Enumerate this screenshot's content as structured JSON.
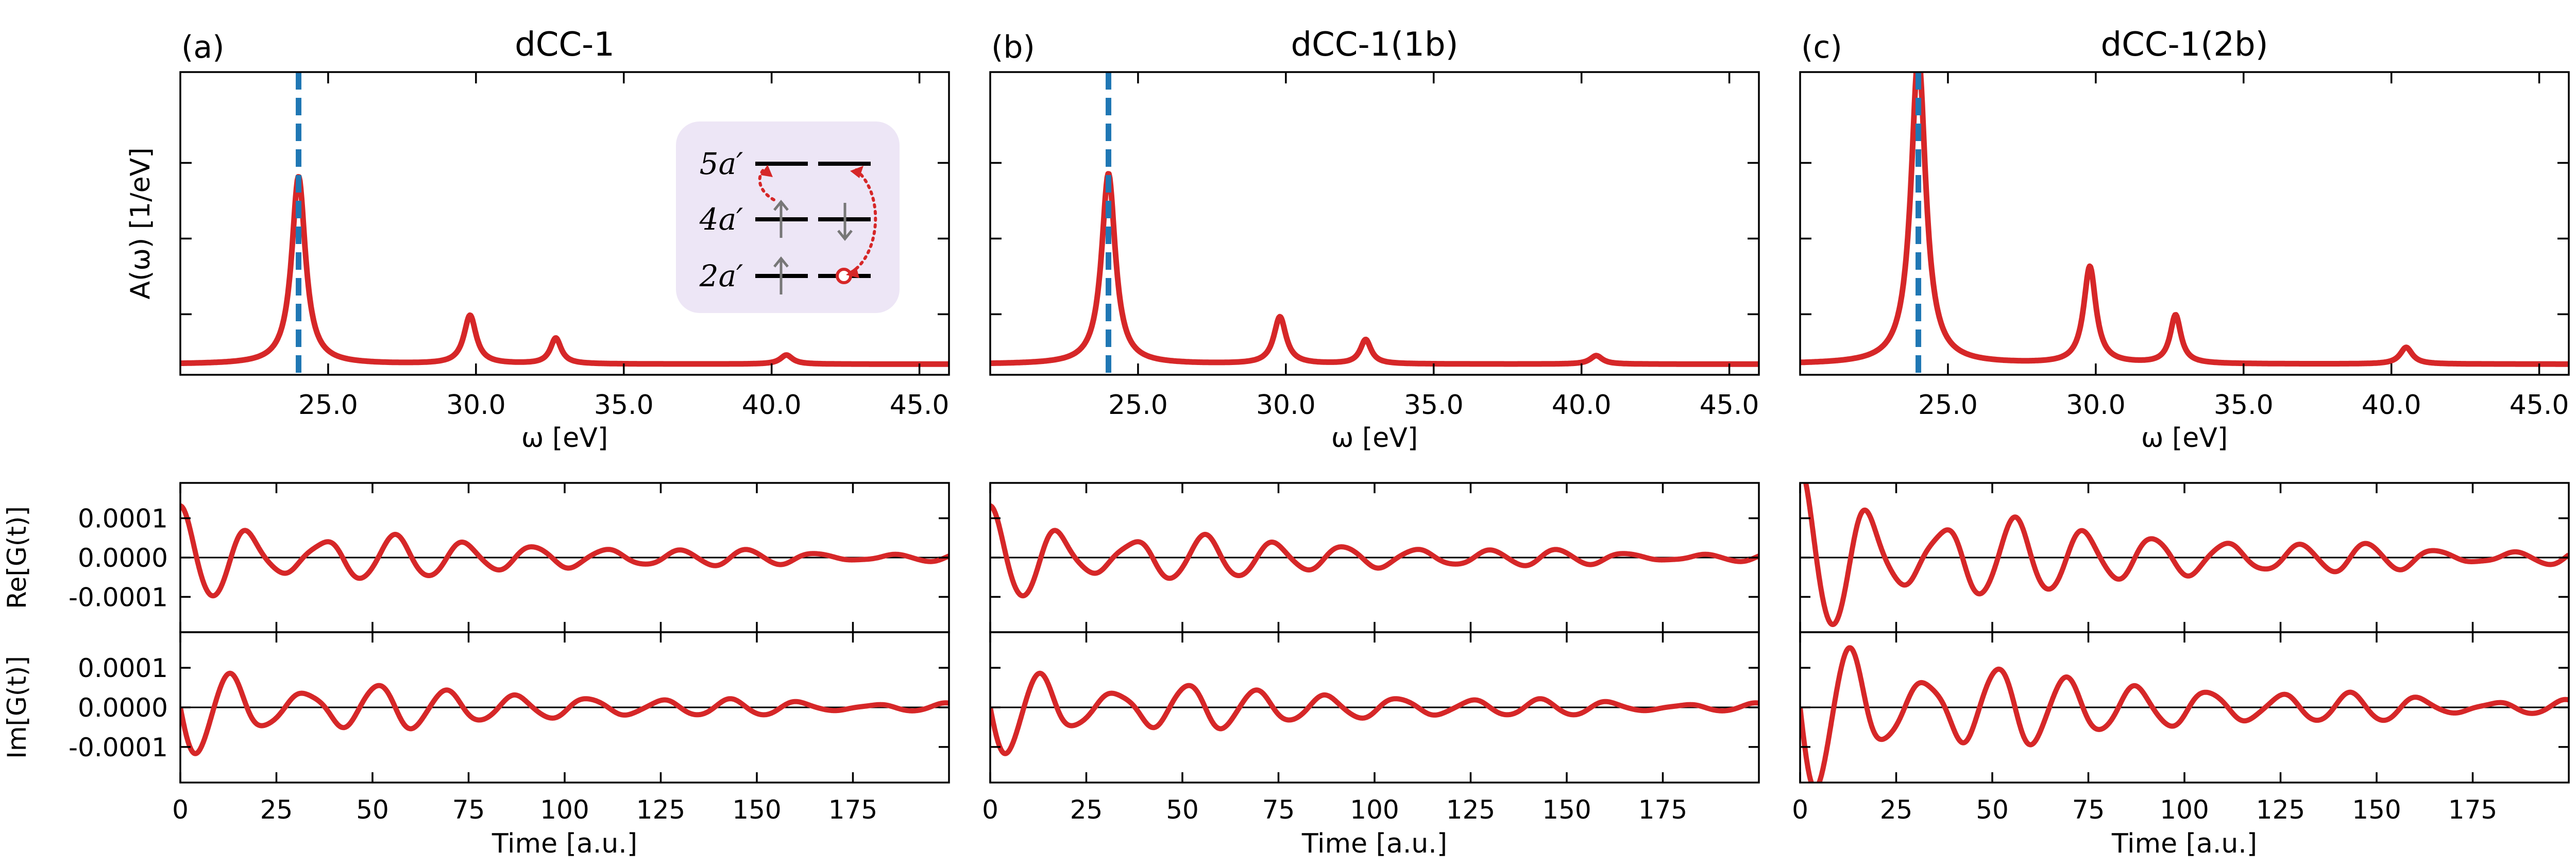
{
  "chart_data": [
    {
      "panel_label": "(a)",
      "title": "dCC-1",
      "spectrum": {
        "type": "line",
        "xlabel": "ω [eV]",
        "ylabel": "A(ω) [1/eV]",
        "xlim": [
          20.0,
          46.0
        ],
        "ylim": [
          0.0,
          1.0
        ],
        "xticks": [
          "25.0",
          "30.0",
          "35.0",
          "40.0",
          "45.0"
        ],
        "xtick_values": [
          25.0,
          30.0,
          35.0,
          40.0,
          45.0
        ],
        "y_ticks_labeled": false,
        "marker_line_x": 24.0,
        "baseline": 0.035,
        "peaks": [
          {
            "x": 24.0,
            "height": 0.62,
            "width": 0.28
          },
          {
            "x": 29.8,
            "height": 0.16,
            "width": 0.25
          },
          {
            "x": 32.7,
            "height": 0.085,
            "width": 0.22
          },
          {
            "x": 40.5,
            "height": 0.03,
            "width": 0.25
          }
        ]
      },
      "re_g": {
        "type": "line",
        "ylabel": "Re[G(t)]",
        "xlim": [
          0,
          200
        ],
        "ylim": [
          -0.00019,
          0.00019
        ],
        "yticks": [
          "0.0001",
          "0.0000",
          "-0.0001"
        ],
        "ytick_values": [
          0.0001,
          0.0,
          -0.0001
        ],
        "scale": 1.0
      },
      "im_g": {
        "type": "line",
        "ylabel": "Im[G(t)]",
        "xlabel": "Time [a.u.]",
        "xlim": [
          0,
          200
        ],
        "ylim": [
          -0.00019,
          0.00019
        ],
        "xticks": [
          "0",
          "25",
          "50",
          "75",
          "100",
          "125",
          "150",
          "175"
        ],
        "xtick_values": [
          0,
          25,
          50,
          75,
          100,
          125,
          150,
          175
        ],
        "yticks": [
          "0.0001",
          "0.0000",
          "-0.0001"
        ],
        "ytick_values": [
          0.0001,
          0.0,
          -0.0001
        ],
        "scale": 1.0
      },
      "inset": {
        "levels": [
          "5a′",
          "4a′",
          "2a′"
        ]
      }
    },
    {
      "panel_label": "(b)",
      "title": "dCC-1(1b)",
      "spectrum": {
        "type": "line",
        "xlabel": "ω [eV]",
        "xlim": [
          20.0,
          46.0
        ],
        "ylim": [
          0.0,
          1.0
        ],
        "xticks": [
          "25.0",
          "30.0",
          "35.0",
          "40.0",
          "45.0"
        ],
        "xtick_values": [
          25.0,
          30.0,
          35.0,
          40.0,
          45.0
        ],
        "y_ticks_labeled": false,
        "marker_line_x": 24.0,
        "baseline": 0.035,
        "peaks": [
          {
            "x": 24.0,
            "height": 0.63,
            "width": 0.28
          },
          {
            "x": 29.8,
            "height": 0.155,
            "width": 0.25
          },
          {
            "x": 32.7,
            "height": 0.08,
            "width": 0.22
          },
          {
            "x": 40.5,
            "height": 0.028,
            "width": 0.25
          }
        ]
      },
      "re_g": {
        "type": "line",
        "xlim": [
          0,
          200
        ],
        "ylim": [
          -0.00019,
          0.00019
        ],
        "scale": 1.0
      },
      "im_g": {
        "type": "line",
        "xlabel": "Time [a.u.]",
        "xlim": [
          0,
          200
        ],
        "ylim": [
          -0.00019,
          0.00019
        ],
        "xticks": [
          "0",
          "25",
          "50",
          "75",
          "100",
          "125",
          "150",
          "175"
        ],
        "xtick_values": [
          0,
          25,
          50,
          75,
          100,
          125,
          150,
          175
        ],
        "scale": 1.0
      }
    },
    {
      "panel_label": "(c)",
      "title": "dCC-1(2b)",
      "spectrum": {
        "type": "line",
        "xlabel": "ω [eV]",
        "xlim": [
          20.0,
          46.0
        ],
        "ylim": [
          0.0,
          1.0
        ],
        "xticks": [
          "25.0",
          "30.0",
          "35.0",
          "40.0",
          "45.0"
        ],
        "xtick_values": [
          25.0,
          30.0,
          35.0,
          40.0,
          45.0
        ],
        "y_ticks_labeled": false,
        "marker_line_x": 24.0,
        "baseline": 0.035,
        "peaks": [
          {
            "x": 24.0,
            "height": 1.02,
            "width": 0.3
          },
          {
            "x": 29.8,
            "height": 0.32,
            "width": 0.25
          },
          {
            "x": 32.7,
            "height": 0.16,
            "width": 0.22
          },
          {
            "x": 40.5,
            "height": 0.055,
            "width": 0.25
          }
        ]
      },
      "re_g": {
        "type": "line",
        "xlim": [
          0,
          200
        ],
        "ylim": [
          -0.00019,
          0.00019
        ],
        "scale": 1.75
      },
      "im_g": {
        "type": "line",
        "xlabel": "Time [a.u.]",
        "xlim": [
          0,
          200
        ],
        "ylim": [
          -0.00019,
          0.00019
        ],
        "xticks": [
          "0",
          "25",
          "50",
          "75",
          "100",
          "125",
          "150",
          "175"
        ],
        "xtick_values": [
          0,
          25,
          50,
          75,
          100,
          125,
          150,
          175
        ],
        "scale": 1.75
      }
    }
  ],
  "colors": {
    "curve": "#d62728",
    "marker_line": "#1f77b4",
    "axis": "#000000",
    "inset_bg": "#ede6f6",
    "inset_arrow": "#d62728",
    "inset_spin": "#777777"
  },
  "signal_components": [
    {
      "omega": 0.34,
      "amplitude": 1.0
    },
    {
      "omega": 0.43,
      "amplitude": 0.26
    },
    {
      "omega": 0.465,
      "amplitude": 0.14
    },
    {
      "omega": 0.78,
      "amplitude": 0.06
    },
    {
      "omega": 0.22,
      "amplitude": 0.08
    }
  ]
}
